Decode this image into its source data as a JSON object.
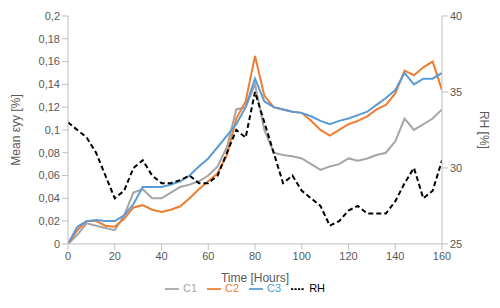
{
  "chart_data": {
    "type": "line",
    "x_label": "Time [Hours]",
    "y_label": "Mean εyy [%]",
    "y2_label": "RH [%]",
    "x": [
      0,
      4,
      8,
      12,
      16,
      20,
      24,
      28,
      32,
      36,
      40,
      44,
      48,
      52,
      56,
      60,
      64,
      68,
      72,
      76,
      80,
      84,
      88,
      92,
      96,
      100,
      104,
      108,
      112,
      116,
      120,
      124,
      128,
      132,
      136,
      140,
      144,
      148,
      152,
      156,
      160
    ],
    "xlim": [
      0,
      160
    ],
    "xticks": [
      0,
      20,
      40,
      60,
      80,
      100,
      120,
      140,
      160
    ],
    "ylim": [
      0,
      0.2
    ],
    "yticks": [
      0,
      {
        "value": 0.02,
        "label": "0,02"
      },
      {
        "value": 0.04,
        "label": "0,04"
      },
      {
        "value": 0.06,
        "label": "0,06"
      },
      {
        "value": 0.08,
        "label": "0,08"
      },
      {
        "value": 0.1,
        "label": "0,1"
      },
      {
        "value": 0.12,
        "label": "0,12"
      },
      {
        "value": 0.14,
        "label": "0,14"
      },
      {
        "value": 0.16,
        "label": "0,16"
      },
      {
        "value": 0.18,
        "label": "0,18"
      },
      {
        "value": 0.2,
        "label": "0,2"
      }
    ],
    "y2lim": [
      25,
      40
    ],
    "y2ticks": [
      25,
      30,
      35,
      40
    ],
    "grid": false,
    "legend": "bottom",
    "series": [
      {
        "name": "C1",
        "color": "#a5a5a5",
        "line_style": "solid",
        "values": [
          0,
          0.008,
          0.018,
          0.016,
          0.014,
          0.012,
          0.025,
          0.045,
          0.048,
          0.04,
          0.04,
          0.045,
          0.05,
          0.052,
          0.055,
          0.06,
          0.068,
          0.085,
          0.118,
          0.12,
          0.14,
          0.1,
          0.08,
          0.078,
          0.077,
          0.075,
          0.07,
          0.065,
          0.068,
          0.07,
          0.075,
          0.073,
          0.075,
          0.078,
          0.08,
          0.09,
          0.11,
          0.1,
          0.105,
          0.11,
          0.118
        ]
      },
      {
        "name": "C2",
        "color": "#ed7d31",
        "line_style": "solid",
        "values": [
          0,
          0.012,
          0.02,
          0.02,
          0.016,
          0.015,
          0.022,
          0.032,
          0.034,
          0.03,
          0.028,
          0.03,
          0.033,
          0.04,
          0.048,
          0.055,
          0.062,
          0.078,
          0.11,
          0.125,
          0.165,
          0.13,
          0.12,
          0.118,
          0.116,
          0.115,
          0.108,
          0.1,
          0.095,
          0.1,
          0.105,
          0.108,
          0.112,
          0.118,
          0.122,
          0.132,
          0.152,
          0.148,
          0.155,
          0.16,
          0.135
        ]
      },
      {
        "name": "C3",
        "color": "#5b9bd5",
        "line_style": "solid",
        "values": [
          0,
          0.015,
          0.02,
          0.021,
          0.02,
          0.02,
          0.025,
          0.035,
          0.05,
          0.05,
          0.05,
          0.052,
          0.055,
          0.06,
          0.068,
          0.075,
          0.085,
          0.095,
          0.105,
          0.12,
          0.145,
          0.125,
          0.12,
          0.118,
          0.116,
          0.115,
          0.112,
          0.108,
          0.105,
          0.108,
          0.11,
          0.113,
          0.116,
          0.122,
          0.128,
          0.135,
          0.15,
          0.14,
          0.145,
          0.145,
          0.15
        ]
      },
      {
        "name": "RH",
        "color": "#000000",
        "line_style": "dashed",
        "axis": "y2",
        "values": [
          33,
          32.5,
          32,
          31,
          29.5,
          28,
          28.5,
          30,
          30.5,
          29.5,
          29,
          29,
          29.2,
          29.5,
          29,
          29,
          29.5,
          31,
          32.5,
          32,
          35,
          33,
          31,
          29,
          29.5,
          28.5,
          28,
          27.5,
          26.2,
          26.5,
          27.2,
          27.5,
          27,
          27,
          27,
          27.8,
          29,
          30,
          28,
          28.5,
          30.5
        ]
      }
    ]
  }
}
